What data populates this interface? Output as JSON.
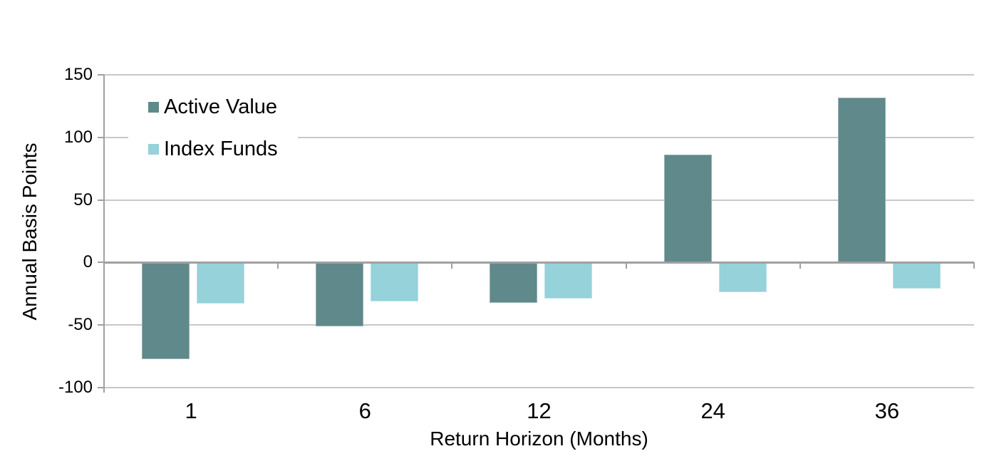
{
  "chart_data": {
    "type": "bar",
    "title": "",
    "categories": [
      "1",
      "6",
      "12",
      "24",
      "36"
    ],
    "series": [
      {
        "name": "Active Value",
        "color": "#5F898B",
        "values": [
          -77,
          -51,
          -32,
          86,
          132
        ]
      },
      {
        "name": "Index Funds",
        "color": "#95D2D9",
        "values": [
          -33,
          -31,
          -29,
          -24,
          -21
        ]
      }
    ],
    "xlabel": "Return Horizon (Months)",
    "ylabel": "Annual Basis Points",
    "ylim": [
      -100,
      150
    ],
    "yticks": [
      150,
      100,
      50,
      0,
      -50,
      -100
    ],
    "grid": true,
    "legend_position": "top-left-inside",
    "colors": {
      "gridline": "#c8c8c8",
      "axis_line": "#a0a0a0",
      "text": "#000000",
      "background": "#ffffff"
    }
  }
}
